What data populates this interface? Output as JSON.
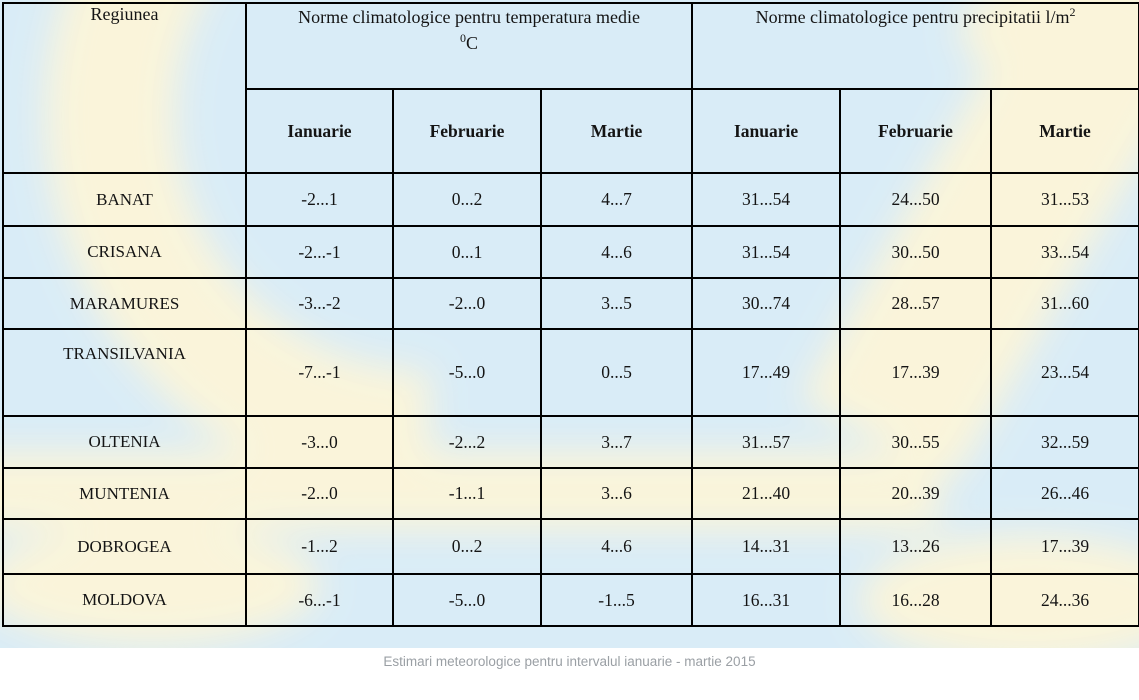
{
  "table": {
    "region_header": "Regiunea",
    "temperature_group": {
      "title": "Norme climatologice pentru temperatura medie",
      "unit_sup": "0",
      "unit_letter": "C"
    },
    "precipitation_group": {
      "title": "Norme climatologice pentru precipitatii l/m",
      "unit_sup": "2"
    },
    "months": [
      "Ianuarie",
      "Februarie",
      "Martie"
    ],
    "rows": [
      {
        "region": "BANAT",
        "temp": [
          "-2...1",
          "0...2",
          "4...7"
        ],
        "precip": [
          "31...54",
          "24...50",
          "31...53"
        ]
      },
      {
        "region": "CRISANA",
        "temp": [
          "-2...-1",
          "0...1",
          "4...6"
        ],
        "precip": [
          "31...54",
          "30...50",
          "33...54"
        ]
      },
      {
        "region": "MARAMURES",
        "temp": [
          "-3...-2",
          "-2...0",
          "3...5"
        ],
        "precip": [
          "30...74",
          "28...57",
          "31...60"
        ]
      },
      {
        "region": "TRANSILVANIA",
        "temp": [
          "-7...-1",
          "-5...0",
          "0...5"
        ],
        "precip": [
          "17...49",
          "17...39",
          "23...54"
        ]
      },
      {
        "region": "OLTENIA",
        "temp": [
          "-3...0",
          "-2...2",
          "3...7"
        ],
        "precip": [
          "31...57",
          "30...55",
          "32...59"
        ]
      },
      {
        "region": "MUNTENIA",
        "temp": [
          "-2...0",
          "-1...1",
          "3...6"
        ],
        "precip": [
          "21...40",
          "20...39",
          "26...46"
        ]
      },
      {
        "region": "DOBROGEA",
        "temp": [
          "-1...2",
          "0...2",
          "4...6"
        ],
        "precip": [
          "14...31",
          "13...26",
          "17...39"
        ]
      },
      {
        "region": "MOLDOVA",
        "temp": [
          "-6...-1",
          "-5...0",
          "-1...5"
        ],
        "precip": [
          "16...31",
          "16...28",
          "24...36"
        ]
      }
    ]
  },
  "caption": "Estimari meteorologice pentru intervalul ianuarie - martie 2015",
  "colors": {
    "background_blue": "#d9ecf7",
    "watermark_cream": "#fcf5d9",
    "grid_border": "#000000",
    "text": "#141414",
    "caption_gray": "#9a9fa4"
  }
}
